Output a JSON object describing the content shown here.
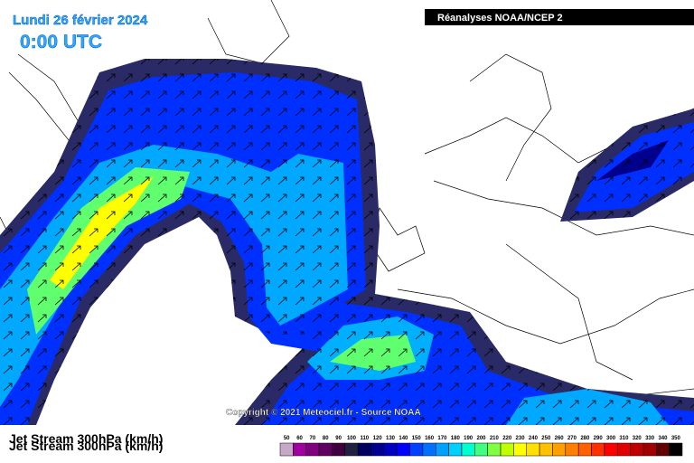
{
  "header": {
    "date": "Lundi 26 février 2024",
    "time": "0:00 UTC",
    "source": "Réanalyses NOAA/NCEP 2"
  },
  "copyright": "Copyright © 2021 Meteociel.fr - Source NOAA",
  "footer": {
    "title": "Jet Stream 300hPa (km/h)"
  },
  "legend": {
    "levels": [
      {
        "value": 50,
        "color": "#c8a8c8"
      },
      {
        "value": 60,
        "color": "#a000a0"
      },
      {
        "value": 70,
        "color": "#800080"
      },
      {
        "value": 80,
        "color": "#600060"
      },
      {
        "value": 90,
        "color": "#400040"
      },
      {
        "value": 100,
        "color": "#202040"
      },
      {
        "value": 110,
        "color": "#000060"
      },
      {
        "value": 120,
        "color": "#000090"
      },
      {
        "value": 130,
        "color": "#0000c0"
      },
      {
        "value": 140,
        "color": "#0000ff"
      },
      {
        "value": 150,
        "color": "#0040ff"
      },
      {
        "value": 160,
        "color": "#0070ff"
      },
      {
        "value": 170,
        "color": "#00a0ff"
      },
      {
        "value": 180,
        "color": "#00d0ff"
      },
      {
        "value": 190,
        "color": "#00ffd0"
      },
      {
        "value": 200,
        "color": "#40ff80"
      },
      {
        "value": 210,
        "color": "#80ff40"
      },
      {
        "value": 220,
        "color": "#c0ff00"
      },
      {
        "value": 230,
        "color": "#ffff00"
      },
      {
        "value": 240,
        "color": "#ffe000"
      },
      {
        "value": 250,
        "color": "#ffc000"
      },
      {
        "value": 260,
        "color": "#ffa000"
      },
      {
        "value": 270,
        "color": "#ff8000"
      },
      {
        "value": 280,
        "color": "#ff6000"
      },
      {
        "value": 290,
        "color": "#ff3000"
      },
      {
        "value": 300,
        "color": "#ff0000"
      },
      {
        "value": 310,
        "color": "#e00000"
      },
      {
        "value": 320,
        "color": "#c00000"
      },
      {
        "value": 330,
        "color": "#a00000"
      },
      {
        "value": 340,
        "color": "#600000"
      },
      {
        "value": 350,
        "color": "#000000"
      }
    ]
  }
}
